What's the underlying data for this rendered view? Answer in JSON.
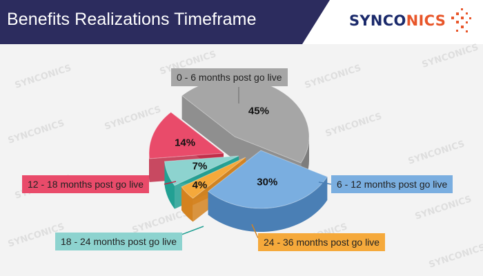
{
  "header": {
    "title": "Benefits Realizations Timeframe",
    "logo_text_part1": "SYNCO",
    "logo_text_part2": "NICS",
    "title_bg_color": "#2c2c5e",
    "logo_blue": "#1b2a6b",
    "logo_orange": "#e8562a"
  },
  "watermark_text": "SYNCONICS",
  "chart_data": {
    "type": "pie",
    "style": "3d-exploded",
    "title": "",
    "labels": [
      "0 - 6 months post go live",
      "6 - 12 months post go live",
      "24 - 36 months post go live",
      "18 - 24 months post go live",
      "12 - 18 months post go live"
    ],
    "values": [
      45,
      30,
      4,
      7,
      14
    ],
    "value_labels": [
      "45%",
      "30%",
      "4%",
      "7%",
      "14%"
    ],
    "colors": [
      "#a6a6a6",
      "#7aaee0",
      "#f5a93b",
      "#8dd3cf",
      "#e94b6a"
    ],
    "side_colors": [
      "#7d7d7d",
      "#4a7fb5",
      "#d48320",
      "#22a093",
      "#c02a47"
    ]
  }
}
